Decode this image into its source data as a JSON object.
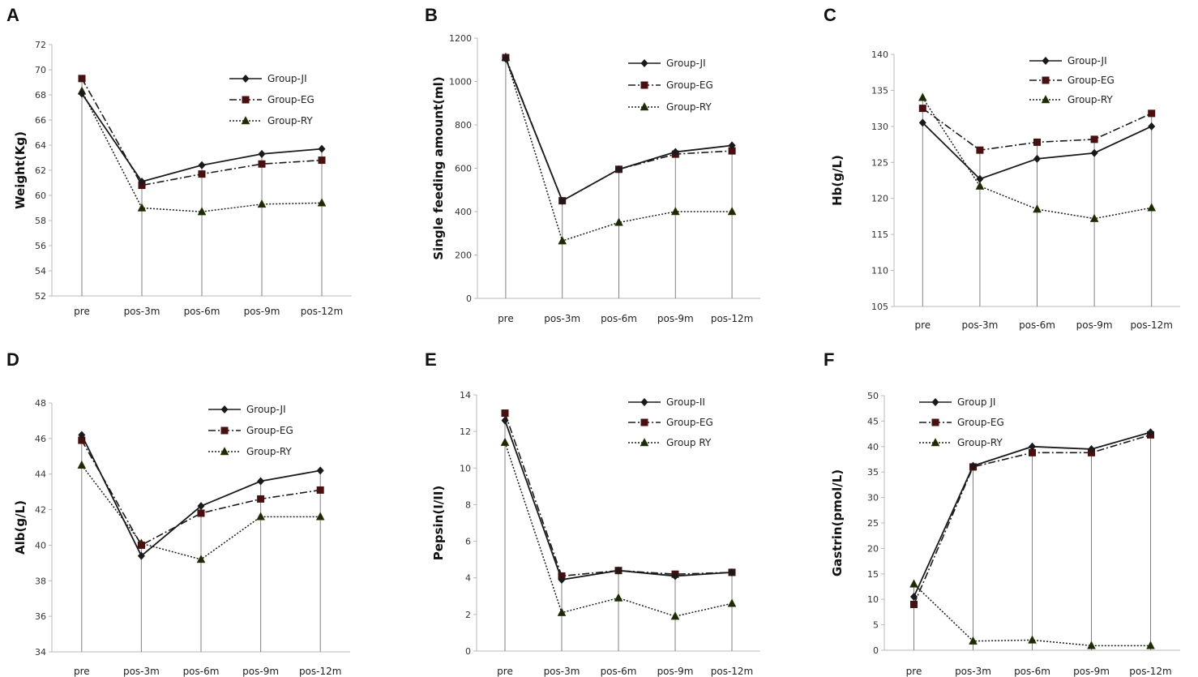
{
  "figure": {
    "panels": [
      "A",
      "B",
      "C",
      "D",
      "E",
      "F"
    ]
  },
  "chart_data": [
    {
      "panel": "A",
      "type": "line",
      "ylabel": "Weight(Kg)",
      "xlabel": "",
      "categories": [
        "pre",
        "pos-3m",
        "pos-6m",
        "pos-9m",
        "pos-12m"
      ],
      "ylim": [
        52,
        72
      ],
      "yticks": [
        52,
        54,
        56,
        58,
        60,
        62,
        64,
        66,
        68,
        70,
        72
      ],
      "legend_position": "top-right",
      "series": [
        {
          "name": "Group-JI",
          "values": [
            68.1,
            61.1,
            62.4,
            63.3,
            63.7
          ],
          "marker": "diamond",
          "style": "solid"
        },
        {
          "name": "Group-EG",
          "values": [
            69.3,
            60.8,
            61.7,
            62.5,
            62.8
          ],
          "marker": "square",
          "style": "dashdot"
        },
        {
          "name": "Group-RY",
          "values": [
            68.3,
            59.0,
            58.7,
            59.3,
            59.4
          ],
          "marker": "triangle",
          "style": "dotted"
        }
      ]
    },
    {
      "panel": "B",
      "type": "line",
      "ylabel": "Single feeding amount(ml)",
      "xlabel": "",
      "categories": [
        "pre",
        "pos-3m",
        "pos-6m",
        "pos-9m",
        "pos-12m"
      ],
      "ylim": [
        0,
        1200
      ],
      "yticks": [
        0,
        200,
        400,
        600,
        800,
        1000,
        1200
      ],
      "legend_position": "top-right",
      "series": [
        {
          "name": "Group-JI",
          "values": [
            1105,
            450,
            595,
            675,
            705
          ],
          "marker": "diamond",
          "style": "solid"
        },
        {
          "name": "Group-EG",
          "values": [
            1110,
            450,
            595,
            665,
            680
          ],
          "marker": "square",
          "style": "dashdot"
        },
        {
          "name": "Group-RY",
          "values": [
            1112,
            265,
            350,
            400,
            400
          ],
          "marker": "triangle",
          "style": "dotted"
        }
      ]
    },
    {
      "panel": "C",
      "type": "line",
      "ylabel": "Hb(g/L)",
      "xlabel": "",
      "categories": [
        "pre",
        "pos-3m",
        "pos-6m",
        "pos-9m",
        "pos-12m"
      ],
      "ylim": [
        105,
        140
      ],
      "yticks": [
        105,
        110,
        115,
        120,
        125,
        130,
        135,
        140
      ],
      "legend_position": "top-right",
      "series": [
        {
          "name": "Group-JI",
          "values": [
            130.5,
            122.7,
            125.5,
            126.3,
            130.0
          ],
          "marker": "diamond",
          "style": "solid"
        },
        {
          "name": "Group-EG",
          "values": [
            132.5,
            126.7,
            127.8,
            128.2,
            131.8
          ],
          "marker": "square",
          "style": "dashdot"
        },
        {
          "name": "Group-RY",
          "values": [
            134.0,
            121.7,
            118.5,
            117.2,
            118.7
          ],
          "marker": "triangle",
          "style": "dotted"
        }
      ]
    },
    {
      "panel": "D",
      "type": "line",
      "ylabel": "Alb(g/L)",
      "xlabel": "",
      "categories": [
        "pre",
        "pos-3m",
        "pos-6m",
        "pos-9m",
        "pos-12m"
      ],
      "ylim": [
        34,
        48
      ],
      "yticks": [
        34,
        36,
        38,
        40,
        42,
        44,
        46,
        48
      ],
      "legend_position": "top-right",
      "series": [
        {
          "name": "Group-JI",
          "values": [
            46.2,
            39.4,
            42.2,
            43.6,
            44.2
          ],
          "marker": "diamond",
          "style": "solid"
        },
        {
          "name": "Group-EG",
          "values": [
            45.9,
            40.0,
            41.8,
            42.6,
            43.1
          ],
          "marker": "square",
          "style": "dashdot"
        },
        {
          "name": "Group-RY",
          "values": [
            44.5,
            40.1,
            39.2,
            41.6,
            41.6
          ],
          "marker": "triangle",
          "style": "dotted"
        }
      ]
    },
    {
      "panel": "E",
      "type": "line",
      "ylabel": "Pepsin(I/II)",
      "xlabel": "",
      "categories": [
        "pre",
        "pos-3m",
        "pos-6m",
        "pos-9m",
        "pos-12m"
      ],
      "ylim": [
        0,
        14
      ],
      "yticks": [
        0,
        2,
        4,
        6,
        8,
        10,
        12,
        14
      ],
      "legend_position": "top-right",
      "series": [
        {
          "name": "Group-II",
          "values": [
            12.6,
            3.9,
            4.4,
            4.1,
            4.3
          ],
          "marker": "diamond",
          "style": "solid"
        },
        {
          "name": "Group-EG",
          "values": [
            13.0,
            4.1,
            4.4,
            4.2,
            4.3
          ],
          "marker": "square",
          "style": "dashdot"
        },
        {
          "name": "Group RY",
          "values": [
            11.4,
            2.1,
            2.9,
            1.9,
            2.6
          ],
          "marker": "triangle",
          "style": "dotted"
        }
      ]
    },
    {
      "panel": "F",
      "type": "line",
      "ylabel": "Gastrin(pmol/L)",
      "xlabel": "",
      "categories": [
        "pre",
        "pos-3m",
        "pos-6m",
        "pos-9m",
        "pos-12m"
      ],
      "ylim": [
        0,
        50
      ],
      "yticks": [
        0,
        5,
        10,
        15,
        20,
        25,
        30,
        35,
        40,
        45,
        50
      ],
      "legend_position": "top-left",
      "series": [
        {
          "name": "Group JI",
          "values": [
            10.5,
            36.2,
            40.0,
            39.5,
            42.8
          ],
          "marker": "diamond",
          "style": "solid"
        },
        {
          "name": "Group-EG",
          "values": [
            9.0,
            36.0,
            38.8,
            38.8,
            42.3
          ],
          "marker": "square",
          "style": "dashdot"
        },
        {
          "name": "Group-RY",
          "values": [
            13.0,
            1.8,
            2.0,
            0.9,
            0.9
          ],
          "marker": "triangle",
          "style": "dotted"
        }
      ]
    }
  ]
}
